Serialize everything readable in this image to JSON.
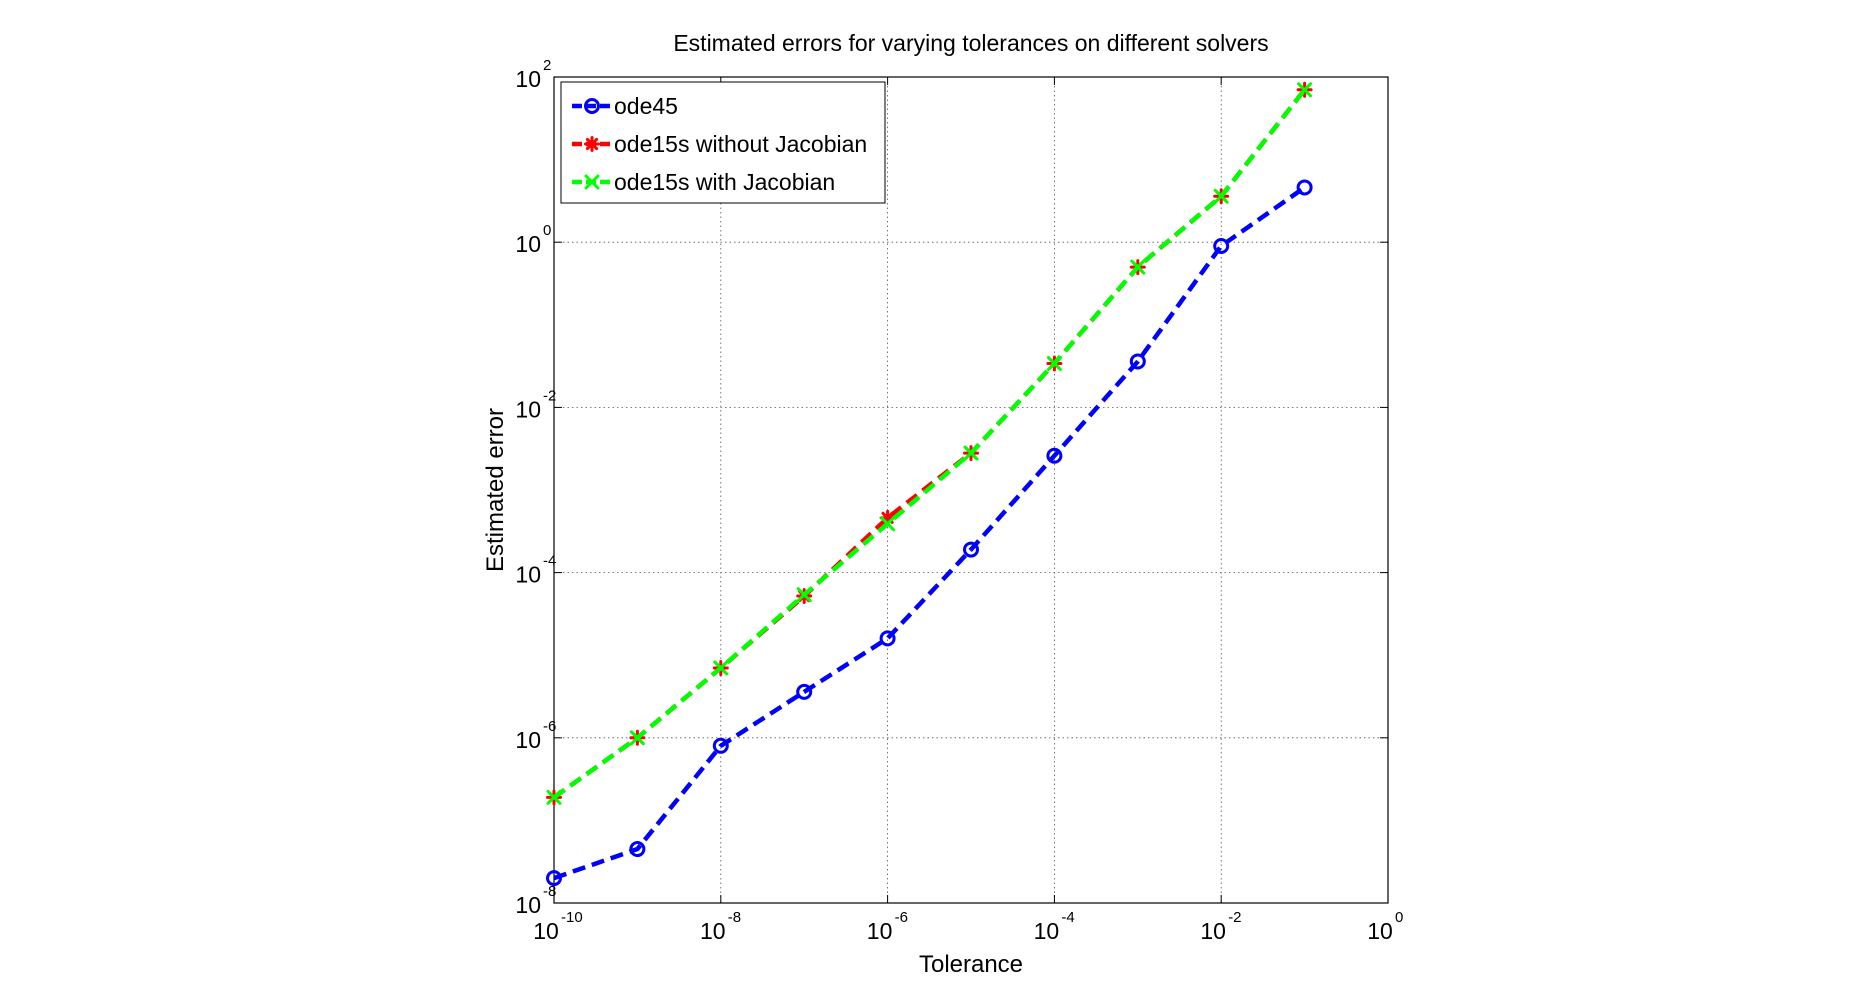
{
  "chart_data": {
    "type": "line",
    "title": "Estimated errors for varying tolerances on different solvers",
    "xlabel": "Tolerance",
    "ylabel": "Estimated error",
    "xscale": "log",
    "yscale": "log",
    "xlim": [
      1e-10,
      1
    ],
    "ylim": [
      1e-08,
      100
    ],
    "xticks": [
      {
        "base": "10",
        "exp": "-10"
      },
      {
        "base": "10",
        "exp": "-8"
      },
      {
        "base": "10",
        "exp": "-6"
      },
      {
        "base": "10",
        "exp": "-4"
      },
      {
        "base": "10",
        "exp": "-2"
      },
      {
        "base": "10",
        "exp": "0"
      }
    ],
    "yticks": [
      {
        "base": "10",
        "exp": "-8"
      },
      {
        "base": "10",
        "exp": "-6"
      },
      {
        "base": "10",
        "exp": "-4"
      },
      {
        "base": "10",
        "exp": "-2"
      },
      {
        "base": "10",
        "exp": "0"
      },
      {
        "base": "10",
        "exp": "2"
      }
    ],
    "grid": true,
    "legend_position": "top-left",
    "x": [
      1e-10,
      1e-09,
      1e-08,
      1e-07,
      1e-06,
      1e-05,
      0.0001,
      0.001,
      0.01,
      0.1
    ],
    "series": [
      {
        "name": "ode45",
        "color": "#0000ff",
        "marker": "circle",
        "values": [
          2e-08,
          4.5e-08,
          8e-07,
          3.6e-06,
          1.6e-05,
          0.00019,
          0.0026,
          0.036,
          0.9,
          4.6
        ]
      },
      {
        "name": "ode15s without Jacobian",
        "color": "#ff0000",
        "marker": "star",
        "values": [
          1.9e-07,
          1e-06,
          7e-06,
          5.2e-05,
          0.00046,
          0.0028,
          0.034,
          0.5,
          3.6,
          70
        ]
      },
      {
        "name": "ode15s with Jacobian",
        "color": "#00ff00",
        "marker": "x",
        "values": [
          1.9e-07,
          1e-06,
          7e-06,
          5.4e-05,
          0.00039,
          0.0028,
          0.034,
          0.5,
          3.6,
          70
        ]
      }
    ]
  }
}
